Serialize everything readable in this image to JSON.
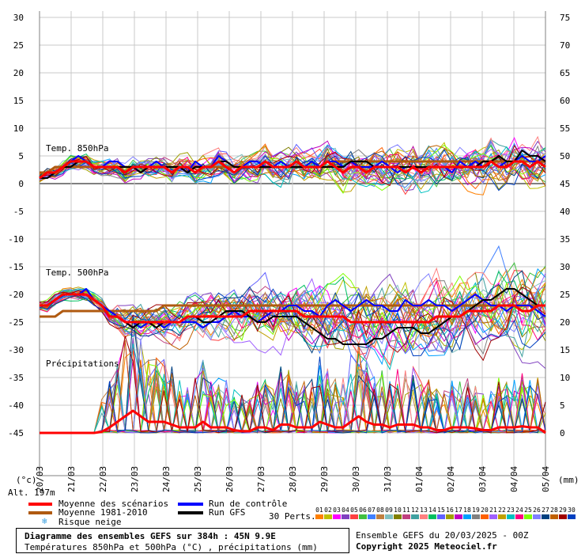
{
  "chart_data": {
    "type": "line",
    "left_axis": {
      "unit": "(°c)",
      "ticks": [
        30,
        25,
        20,
        15,
        10,
        5,
        0,
        -5,
        -10,
        -15,
        -20,
        -25,
        -30,
        -35,
        -40,
        -45
      ],
      "range": [
        -45,
        30
      ]
    },
    "right_axis": {
      "unit": "(mm)",
      "ticks": [
        75,
        70,
        65,
        60,
        55,
        50,
        45,
        40,
        35,
        30,
        25,
        20,
        15,
        10,
        5,
        0
      ]
    },
    "x_labels": [
      "20/03",
      "21/03",
      "22/03",
      "23/03",
      "24/03",
      "25/03",
      "26/03",
      "27/03",
      "28/03",
      "29/03",
      "30/03",
      "31/03",
      "01/04",
      "02/04",
      "03/04",
      "04/04",
      "05/04"
    ],
    "panel_labels": {
      "t850": "Temp. 850hPa",
      "t500": "Temp. 500hPa",
      "precip": "Précipitations"
    },
    "altitude": "Alt. 197m",
    "series": [
      {
        "name": "Moyenne des scénarios",
        "panel": "t850",
        "color": "#ff0000",
        "values": [
          1,
          2,
          2,
          3,
          4,
          4,
          4,
          3,
          3,
          3,
          3,
          2,
          3,
          3,
          3,
          3,
          3,
          2,
          3,
          3,
          2,
          3,
          3,
          4,
          3,
          2,
          3,
          3,
          3,
          4,
          3,
          3,
          3,
          4,
          3,
          3,
          3,
          4,
          3,
          2,
          3,
          3,
          2,
          3,
          3,
          3,
          3,
          2,
          3,
          2,
          3,
          3,
          3,
          3,
          3,
          3,
          3,
          3,
          4,
          3,
          3,
          4,
          4,
          3,
          4,
          3
        ]
      },
      {
        "name": "Moyenne 1981-2010",
        "panel": "t850",
        "color": "#b05a10",
        "values": [
          2,
          2,
          3,
          3,
          3,
          3,
          3,
          3,
          3,
          3,
          3,
          3,
          3,
          3,
          3,
          3,
          3,
          3,
          3,
          3,
          3,
          3,
          3,
          3,
          3,
          3,
          3,
          3,
          3,
          3,
          3,
          3,
          3,
          3,
          3,
          3,
          3,
          3,
          4,
          4,
          4,
          4,
          4,
          4,
          4,
          4,
          4,
          4,
          4,
          4,
          4,
          4,
          4,
          4,
          4,
          4,
          4,
          4,
          4,
          4,
          4,
          4,
          4,
          4,
          4,
          4
        ]
      },
      {
        "name": "Run de contrôle",
        "panel": "t850",
        "color": "#0000ff",
        "values": [
          1,
          1,
          2,
          3,
          4,
          5,
          4,
          3,
          3,
          4,
          4,
          3,
          3,
          2,
          3,
          4,
          3,
          3,
          3,
          2,
          4,
          3,
          3,
          5,
          4,
          3,
          3,
          4,
          4,
          3,
          3,
          4,
          3,
          4,
          3,
          4,
          3,
          4,
          4,
          3,
          4,
          3,
          3,
          3,
          4,
          3,
          2,
          3,
          3,
          2,
          3,
          3,
          3,
          2,
          4,
          3,
          4,
          3,
          4,
          3,
          4,
          4,
          5,
          4,
          4,
          5
        ]
      },
      {
        "name": "Run GFS",
        "panel": "t850",
        "color": "#000000",
        "values": [
          1,
          1,
          2,
          3,
          3,
          4,
          4,
          3,
          3,
          3,
          3,
          3,
          3,
          2,
          3,
          3,
          3,
          3,
          3,
          2,
          3,
          3,
          3,
          4,
          4,
          3,
          3,
          3,
          3,
          3,
          3,
          3,
          3,
          3,
          3,
          3,
          3,
          3,
          3,
          3,
          4,
          4,
          4,
          3,
          3,
          3,
          3,
          3,
          3,
          3,
          3,
          3,
          3,
          3,
          3,
          3,
          3,
          4,
          4,
          5,
          4,
          4,
          6,
          5,
          5,
          4
        ]
      },
      {
        "name": "Moyenne des scénarios",
        "panel": "t500",
        "color": "#ff0000",
        "values": [
          -22,
          -22,
          -21,
          -20,
          -20,
          -20,
          -20,
          -21,
          -22,
          -24,
          -24,
          -25,
          -25,
          -25,
          -25,
          -25,
          -25,
          -25,
          -25,
          -24,
          -24,
          -24,
          -24,
          -24,
          -24,
          -24,
          -24,
          -23,
          -23,
          -23,
          -23,
          -23,
          -23,
          -23,
          -24,
          -24,
          -24,
          -24,
          -24,
          -24,
          -25,
          -25,
          -25,
          -25,
          -25,
          -25,
          -25,
          -25,
          -25,
          -25,
          -25,
          -24,
          -24,
          -24,
          -24,
          -23,
          -23,
          -23,
          -23,
          -22,
          -22,
          -22,
          -23,
          -23,
          -22,
          -22
        ]
      },
      {
        "name": "Moyenne 1981-2010",
        "panel": "t500",
        "color": "#b05a10",
        "values": [
          -24,
          -24,
          -24,
          -23,
          -23,
          -23,
          -23,
          -23,
          -23,
          -23,
          -23,
          -23,
          -23,
          -23,
          -23,
          -23,
          -22,
          -22,
          -22,
          -22,
          -22,
          -22,
          -22,
          -22,
          -22,
          -22,
          -22,
          -22,
          -22,
          -22,
          -22,
          -22,
          -22,
          -22,
          -22,
          -22,
          -22,
          -22,
          -22,
          -22,
          -22,
          -22,
          -22,
          -22,
          -22,
          -22,
          -22,
          -22,
          -22,
          -22,
          -22,
          -22,
          -22,
          -22,
          -22,
          -22,
          -22,
          -22,
          -22,
          -22,
          -22,
          -22,
          -22,
          -22,
          -22,
          -22
        ]
      },
      {
        "name": "Run de contrôle",
        "panel": "t500",
        "color": "#0000ff",
        "values": [
          -22,
          -22,
          -21,
          -20,
          -20,
          -20,
          -19,
          -21,
          -22,
          -23,
          -24,
          -25,
          -25,
          -26,
          -25,
          -25,
          -26,
          -25,
          -25,
          -25,
          -25,
          -26,
          -25,
          -25,
          -24,
          -23,
          -24,
          -24,
          -25,
          -24,
          -23,
          -23,
          -22,
          -22,
          -23,
          -23,
          -24,
          -22,
          -21,
          -22,
          -23,
          -22,
          -21,
          -22,
          -22,
          -23,
          -23,
          -21,
          -22,
          -22,
          -21,
          -22,
          -22,
          -23,
          -22,
          -21,
          -20,
          -21,
          -22,
          -22,
          -23,
          -22,
          -22,
          -22,
          -23,
          -24
        ]
      },
      {
        "name": "Run GFS",
        "panel": "t500",
        "color": "#000000",
        "values": [
          -22,
          -22,
          -21,
          -20,
          -20,
          -20,
          -20,
          -21,
          -22,
          -24,
          -24,
          -25,
          -26,
          -25,
          -25,
          -26,
          -25,
          -25,
          -25,
          -24,
          -24,
          -25,
          -25,
          -24,
          -23,
          -23,
          -23,
          -24,
          -25,
          -25,
          -24,
          -24,
          -24,
          -24,
          -25,
          -26,
          -27,
          -28,
          -28,
          -29,
          -29,
          -29,
          -29,
          -28,
          -28,
          -27,
          -26,
          -26,
          -26,
          -27,
          -27,
          -26,
          -25,
          -24,
          -24,
          -23,
          -22,
          -21,
          -21,
          -20,
          -19,
          -19,
          -20,
          -21,
          -22,
          -22
        ]
      },
      {
        "name": "Moyenne des scénarios",
        "panel": "precip",
        "color": "#ff0000",
        "values": [
          0,
          0,
          0,
          0,
          0,
          0,
          0,
          0,
          0.2,
          1,
          2,
          3,
          4,
          3,
          2,
          2,
          2,
          1.5,
          1,
          1,
          1,
          2,
          1,
          1,
          1,
          0.5,
          0.3,
          0.3,
          1,
          1,
          0.5,
          1.5,
          1.5,
          1,
          1,
          1,
          2,
          1.5,
          1,
          1,
          2,
          3,
          2,
          1.5,
          1.5,
          1,
          1.5,
          1.5,
          1.5,
          1,
          1,
          0.5,
          0.5,
          1,
          1,
          1,
          0.8,
          0.5,
          0.5,
          1,
          1,
          1,
          1.2,
          1,
          1,
          0
        ]
      }
    ]
  },
  "legend": {
    "mean": "Moyenne des scénarios",
    "climate": "Moyenne 1981-2010",
    "snow": "Risque neige",
    "control": "Run de contrôle",
    "gfs": "Run GFS",
    "perts_label": "30 Perts.",
    "pert_numbers": [
      "01",
      "02",
      "03",
      "04",
      "05",
      "06",
      "07",
      "08",
      "09",
      "10",
      "11",
      "12",
      "13",
      "14",
      "15",
      "16",
      "17",
      "18",
      "19",
      "20",
      "21",
      "22",
      "23",
      "24",
      "25",
      "26",
      "27",
      "28",
      "29",
      "30"
    ],
    "pert_colors": [
      "#ff8000",
      "#c0c000",
      "#ff00ff",
      "#8040c0",
      "#ff4040",
      "#40c040",
      "#4080ff",
      "#c08040",
      "#80c0c0",
      "#808000",
      "#c04080",
      "#40a0a0",
      "#ff8080",
      "#00c060",
      "#6060ff",
      "#a0a000",
      "#c000c0",
      "#00a0ff",
      "#808080",
      "#ff6000",
      "#a060ff",
      "#c0a000",
      "#00c0c0",
      "#ff0080",
      "#80ff00",
      "#8080ff",
      "#004080",
      "#c06000",
      "#a00000",
      "#0040c0"
    ]
  },
  "info": {
    "title": "Diagramme des ensembles GEFS sur 384h : 45N 9.9E",
    "subtitle": "Températures 850hPa et 500hPa (°C) , précipitations (mm)",
    "run": "Ensemble GEFS du 20/03/2025 - 00Z",
    "copyright": "Copyright 2025 Meteociel.fr"
  }
}
